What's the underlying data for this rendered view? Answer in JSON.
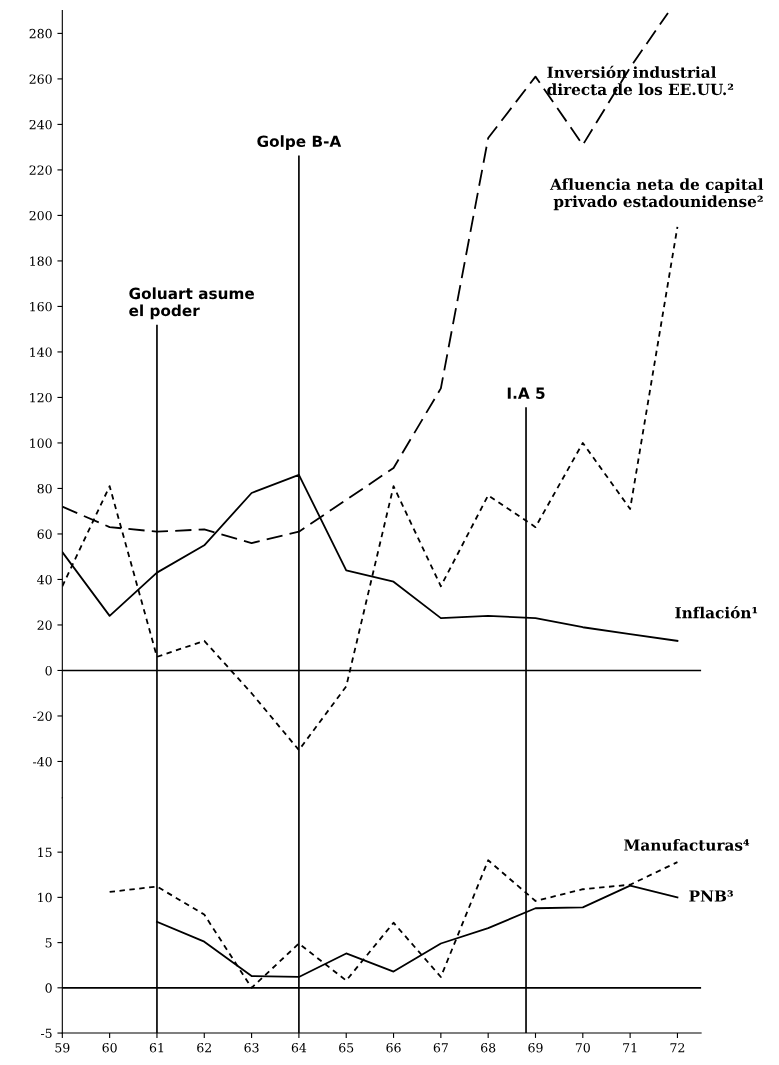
{
  "chart_data": [
    {
      "type": "line",
      "x": [
        59,
        60,
        61,
        62,
        63,
        64,
        65,
        66,
        67,
        68,
        69,
        70,
        71,
        72
      ],
      "xlim": [
        59,
        72.5
      ],
      "ylim": [
        -56,
        290
      ],
      "yticks": [
        -40,
        -20,
        0,
        20,
        40,
        60,
        80,
        100,
        120,
        140,
        160,
        180,
        200,
        220,
        240,
        260,
        280
      ],
      "tick_labels": "y",
      "grid": false,
      "legend": false,
      "marker": "none",
      "series": [
        {
          "name": "Inflación¹",
          "color": "#000000",
          "line_style": "solid",
          "values": [
            52,
            24,
            43,
            55,
            78,
            86,
            44,
            39,
            23,
            24,
            23,
            19,
            16,
            13
          ]
        },
        {
          "name": "Inversión industrial\ndirecta de los EE.UU.²",
          "color": "#000000",
          "line_style": "dashed",
          "x": [
            59,
            60,
            61,
            62,
            63,
            64,
            65,
            66,
            67,
            68,
            69,
            70,
            71,
            71.8
          ],
          "values": [
            72,
            63,
            61,
            62,
            56,
            61,
            75,
            89,
            124,
            234,
            261,
            231,
            265,
            289
          ]
        },
        {
          "name": "Afluencia neta de capital\nprivado estadounidense²",
          "color": "#000000",
          "line_style": "dotted",
          "values": [
            37,
            81,
            6,
            13,
            -10,
            -35,
            -7,
            81,
            37,
            77,
            63,
            100,
            71,
            195
          ]
        }
      ],
      "ref_lines": [
        {
          "axis": "y",
          "value": 0
        },
        {
          "axis": "x",
          "value": 61,
          "label": "Goluart asume\nel poder"
        },
        {
          "axis": "x",
          "value": 64,
          "label": "Golpe B-A"
        },
        {
          "axis": "x",
          "value": 68.8,
          "label": "I.A 5"
        }
      ]
    },
    {
      "type": "line",
      "xlim": [
        59,
        72.5
      ],
      "xticks": [
        59,
        60,
        61,
        62,
        63,
        64,
        65,
        66,
        67,
        68,
        69,
        70,
        71,
        72
      ],
      "ylim": [
        -5,
        21
      ],
      "yticks": [
        -5,
        0,
        5,
        10,
        15
      ],
      "grid": false,
      "legend": false,
      "marker": "none",
      "series": [
        {
          "name": "Manufacturas⁴",
          "color": "#000000",
          "line_style": "dotted",
          "x": [
            60,
            61,
            62,
            63,
            64,
            65,
            66,
            67,
            68,
            69,
            70,
            71,
            72
          ],
          "values": [
            10.6,
            11.2,
            8.1,
            0,
            4.9,
            0.8,
            7.2,
            1.2,
            14.1,
            9.6,
            10.9,
            11.4,
            13.9
          ]
        },
        {
          "name": "PNB³",
          "color": "#000000",
          "line_style": "solid",
          "x": [
            61,
            62,
            63,
            64,
            65,
            66,
            67,
            68,
            69,
            70,
            71,
            72
          ],
          "values": [
            7.3,
            5.1,
            1.3,
            1.2,
            3.8,
            1.8,
            4.9,
            6.6,
            8.8,
            8.9,
            11.3,
            10.0
          ]
        }
      ],
      "ref_lines": [
        {
          "axis": "y",
          "value": 0
        },
        {
          "axis": "x",
          "value": 61
        },
        {
          "axis": "x",
          "value": 64
        },
        {
          "axis": "x",
          "value": 68.8
        }
      ]
    }
  ]
}
